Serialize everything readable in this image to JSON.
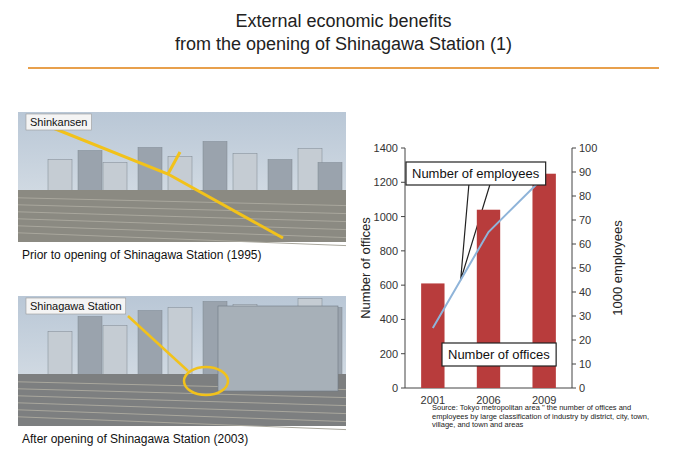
{
  "slide": {
    "title": [
      "External economic benefits",
      "from the opening of Shinagawa Station (1)"
    ],
    "photos": [
      {
        "label": "Shinkansen",
        "caption": "Prior to opening of Shinagawa Station (1995)"
      },
      {
        "label": "Shinagawa Station",
        "caption": "After opening of Shinagawa Station (2003)"
      }
    ]
  },
  "chart_data": {
    "type": "bar",
    "categories": [
      "2001",
      "2006",
      "2009"
    ],
    "series": [
      {
        "name": "Number of offices",
        "type": "bar",
        "color": "#b83c3c",
        "values": [
          610,
          1040,
          1250
        ]
      },
      {
        "name": "Number of employees",
        "type": "line",
        "axis": "y2",
        "color": "#8fb4d9",
        "values": [
          25,
          65,
          88
        ]
      }
    ],
    "y_label": "Number of offices",
    "y2_label": "1000 employees",
    "ylim": [
      0,
      1400
    ],
    "yticks": [
      0,
      200,
      400,
      600,
      800,
      1000,
      1200,
      1400
    ],
    "y2lim": [
      0,
      100
    ],
    "y2ticks": [
      0,
      10,
      20,
      30,
      40,
      50,
      60,
      70,
      80,
      90,
      100
    ],
    "grid": false,
    "source": "Source: Tokyo metropolitan area \" the number of offices and employees by large classification of industry by district, city, town, village, and town and areas"
  }
}
